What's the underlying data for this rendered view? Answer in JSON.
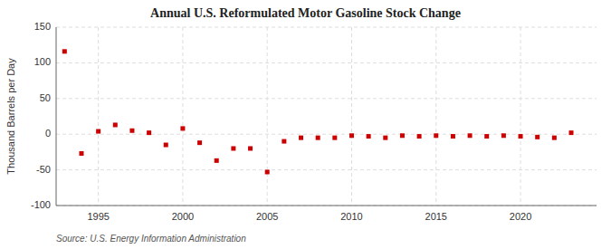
{
  "chart_data": {
    "type": "scatter",
    "title": "Annual U.S. Reformulated Motor Gasoline Stock Change",
    "ylabel": "Thousand Barrels per Day",
    "annotation": "Source: U.S. Energy Information Administration",
    "color": "#cc0000",
    "marker": "square",
    "grid": true,
    "xlim": [
      1992.5,
      2024.5
    ],
    "xticks": [
      1995,
      2000,
      2005,
      2010,
      2015,
      2020
    ],
    "ylim": [
      -100,
      150
    ],
    "yticks": [
      -100,
      -50,
      0,
      50,
      100,
      150
    ],
    "x": [
      1993,
      1994,
      1995,
      1996,
      1997,
      1998,
      1999,
      2000,
      2001,
      2002,
      2003,
      2004,
      2005,
      2006,
      2007,
      2008,
      2009,
      2010,
      2011,
      2012,
      2013,
      2014,
      2015,
      2016,
      2017,
      2018,
      2019,
      2020,
      2021,
      2022,
      2023
    ],
    "values": [
      116,
      -27,
      4,
      13,
      5,
      2,
      -15,
      8,
      -12,
      -37,
      -20,
      -20,
      -53,
      -10,
      -5,
      -5,
      -5,
      -2,
      -3,
      -5,
      -2,
      -3,
      -2,
      -3,
      -2,
      -3,
      -2,
      -3,
      -4,
      -5,
      2
    ]
  }
}
